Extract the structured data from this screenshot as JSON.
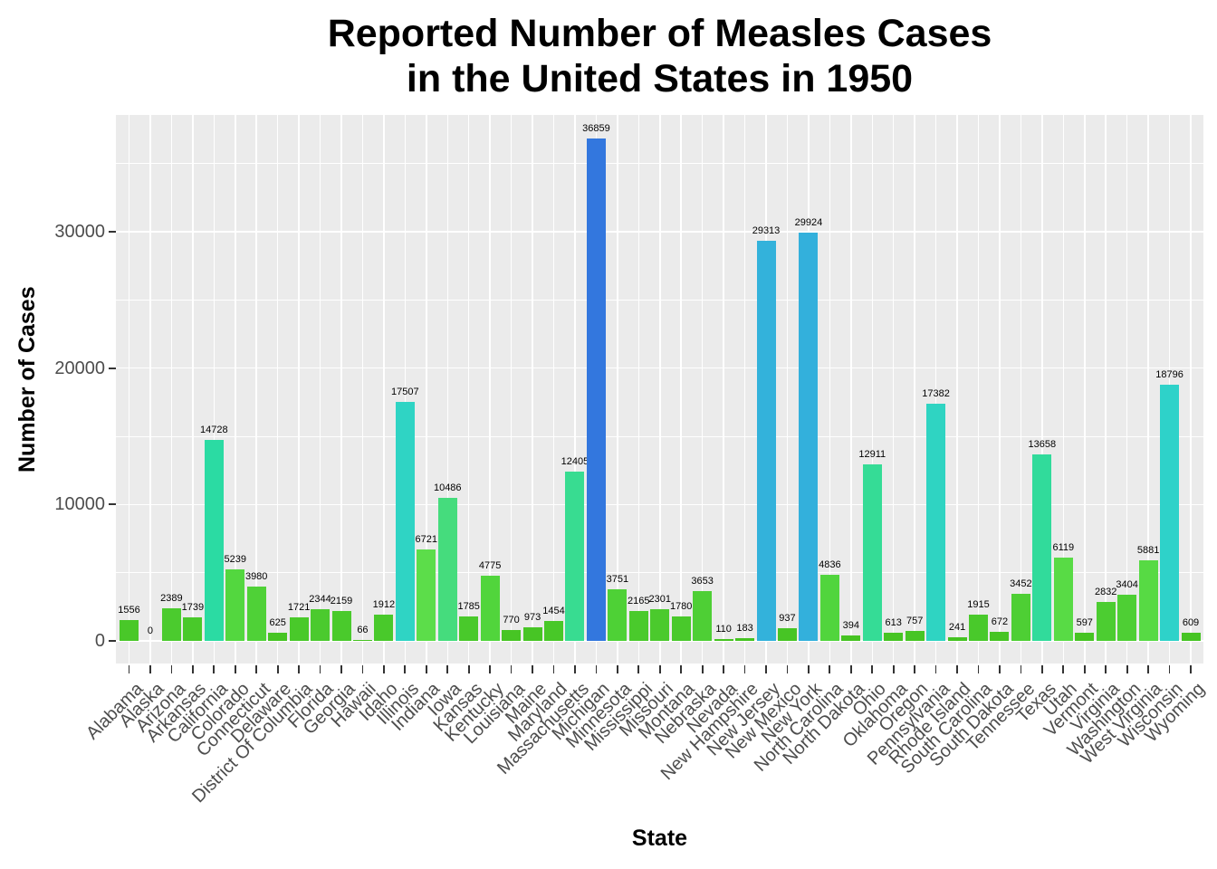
{
  "chart_data": {
    "type": "bar",
    "title_lines": [
      "Reported Number of Measles Cases",
      "in the United States in 1950"
    ],
    "xlabel": "State",
    "ylabel": "Number of Cases",
    "categories": [
      "Alabama",
      "Alaska",
      "Arizona",
      "Arkansas",
      "California",
      "Colorado",
      "Connecticut",
      "Delaware",
      "District Of Columbia",
      "Florida",
      "Georgia",
      "Hawaii",
      "Idaho",
      "Illinois",
      "Indiana",
      "Iowa",
      "Kansas",
      "Kentucky",
      "Louisiana",
      "Maine",
      "Maryland",
      "Massachusetts",
      "Michigan",
      "Minnesota",
      "Mississippi",
      "Missouri",
      "Montana",
      "Nebraska",
      "Nevada",
      "New Hampshire",
      "New Jersey",
      "New Mexico",
      "New York",
      "North Carolina",
      "North Dakota",
      "Ohio",
      "Oklahoma",
      "Oregon",
      "Pennsylvania",
      "Rhode Island",
      "South Carolina",
      "South Dakota",
      "Tennessee",
      "Texas",
      "Utah",
      "Vermont",
      "Virginia",
      "Washington",
      "West Virginia",
      "Wisconsin",
      "Wyoming"
    ],
    "values": [
      1556,
      0,
      2389,
      1739,
      14728,
      5239,
      3980,
      625,
      1721,
      2344,
      2159,
      66,
      1912,
      17507,
      6721,
      10486,
      1785,
      4775,
      770,
      973,
      1454,
      12405,
      36859,
      3751,
      2165,
      2301,
      1780,
      3653,
      110,
      183,
      29313,
      937,
      29924,
      4836,
      394,
      12911,
      613,
      757,
      17382,
      241,
      1915,
      672,
      3452,
      13658,
      6119,
      597,
      2832,
      3404,
      5881,
      18796,
      609
    ],
    "colors": [
      "#49C829",
      "#45C220",
      "#4BCB2E",
      "#49C92A",
      "#2BDBA3",
      "#53D73F",
      "#4FD137",
      "#46C423",
      "#49C92A",
      "#4BCA2E",
      "#4ACA2C",
      "#45C220",
      "#49C92B",
      "#2FD4C4",
      "#5CDD4A",
      "#45DC7D",
      "#49C92B",
      "#51D53C",
      "#47C524",
      "#47C525",
      "#48C828",
      "#38DC91",
      "#3377DE",
      "#4ED136",
      "#4ACA2C",
      "#4BCA2D",
      "#49C92B",
      "#4ECF35",
      "#45C220",
      "#45C321",
      "#33B2DB",
      "#47C525",
      "#33B0DC",
      "#51D53D",
      "#46C322",
      "#35DC96",
      "#46C423",
      "#47C524",
      "#2FD4C2",
      "#45C321",
      "#49C92B",
      "#46C423",
      "#4ECF34",
      "#31DB9B",
      "#58DB45",
      "#46C423",
      "#4CCD31",
      "#4ECF34",
      "#57DA44",
      "#2ED2C9",
      "#46C423"
    ],
    "y_ticks": [
      0,
      10000,
      20000,
      30000
    ],
    "y_minor_ticks": [
      5000,
      15000,
      25000,
      35000
    ],
    "ylim": [
      0,
      38700
    ],
    "bar_labels_shown": true,
    "legend": "none",
    "grid": true,
    "panel_bg": "#EBEBEB",
    "grid_color": "#FFFFFF",
    "axis_text_color": "#4D4D4D",
    "tick_mark_color": "#333333",
    "bar_label_color": "#000000",
    "title_color": "#000000"
  }
}
